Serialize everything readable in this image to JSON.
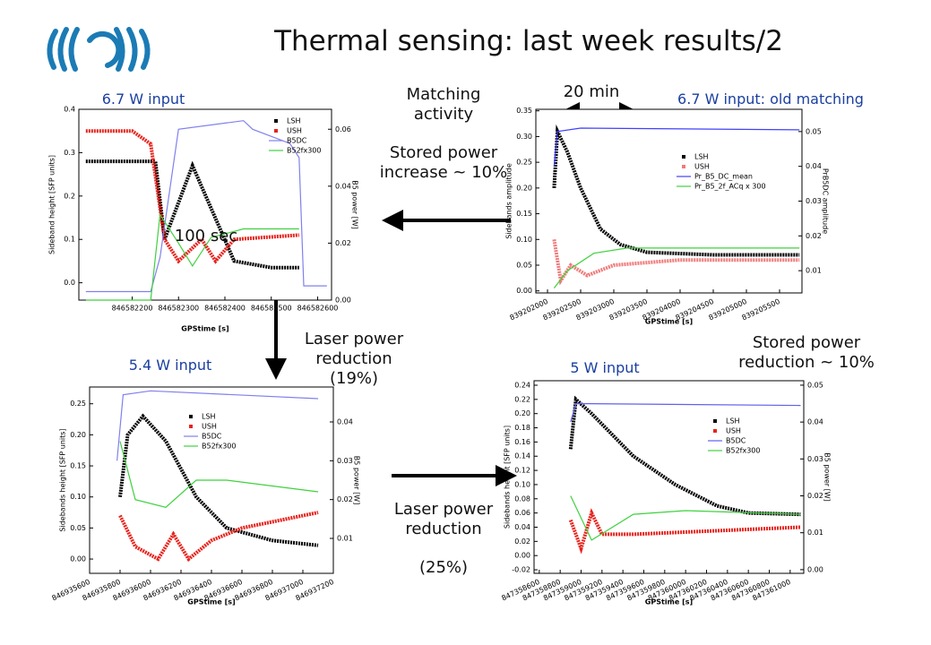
{
  "title": "Thermal sensing: last week results/2",
  "annotations": {
    "tl_input": "6.7 W input",
    "matching": "Matching activity",
    "stored_up": "Stored power increase ~ 10%",
    "twenty_min": "20 min",
    "tr_input": "6.7 W input: old matching",
    "hundred_sec": "100 sec",
    "laser_19": "Laser power reduction (19%)",
    "bl_input": "5.4 W input",
    "stored_down": "Stored power reduction ~ 10%",
    "br_input": "5 W input",
    "laser_25": "Laser power reduction",
    "laser_25_pct": "(25%)"
  },
  "chart_data": [
    {
      "type": "line",
      "xlabel": "GPStime [s]",
      "ylabel": "Sideband height [SFP units]",
      "y2label": "B5 power [W]",
      "xlim": [
        846582085,
        846582630
      ],
      "ylim": [
        -0.04,
        0.4
      ],
      "y2lim": [
        0,
        0.067
      ],
      "xticks": [
        846582200,
        846582300,
        846582400,
        846582500,
        846582600
      ],
      "yticks": [
        {
          "value": 0,
          "label": "0.0"
        },
        0.1,
        0.2,
        0.3,
        0.4
      ],
      "y2ticks": [
        {
          "value": 0,
          "label": "0.00"
        },
        0.02,
        0.04,
        0.06
      ],
      "series": [
        {
          "name": "LSH",
          "color": "#000000",
          "x": [
            846582100,
            846582250,
            846582270,
            846582330,
            846582420,
            846582500,
            846582560
          ],
          "values": [
            0.28,
            0.28,
            0.1,
            0.27,
            0.05,
            0.035,
            0.035
          ]
        },
        {
          "name": "USH",
          "color": "#e8231c",
          "x": [
            846582100,
            846582200,
            846582240,
            846582270,
            846582300,
            846582350,
            846582380,
            846582420,
            846582560
          ],
          "values": [
            0.35,
            0.35,
            0.32,
            0.1,
            0.05,
            0.1,
            0.05,
            0.1,
            0.11
          ]
        },
        {
          "name": "B5DC",
          "color": "#8080ee",
          "axis": "y2",
          "x": [
            846582100,
            846582240,
            846582260,
            846582300,
            846582440,
            846582460,
            846582540,
            846582560,
            846582570,
            846582620
          ],
          "values": [
            0.003,
            0.003,
            0.015,
            0.06,
            0.063,
            0.06,
            0.055,
            0.05,
            0.005,
            0.005
          ]
        },
        {
          "name": "B52fx300",
          "color": "#3fd13f",
          "axis": "y2",
          "x": [
            846582100,
            846582240,
            846582260,
            846582300,
            846582330,
            846582370,
            846582440,
            846582560
          ],
          "values": [
            0,
            0,
            0.03,
            0.02,
            0.012,
            0.022,
            0.025,
            0.025
          ]
        }
      ]
    },
    {
      "type": "line",
      "xlabel": "GPStime [s]",
      "ylabel": "Sidebands amplitude",
      "y2label": "PrB5DC amplitude",
      "xlim": [
        839201824,
        839205838
      ],
      "ylim": [
        -0.004,
        0.353
      ],
      "y2lim": [
        0.0036,
        0.0564
      ],
      "xticks": [
        839202000,
        839202500,
        839203000,
        839203500,
        839204000,
        839204500,
        839205000,
        839205500
      ],
      "yticks": [
        {
          "value": 0,
          "label": "0.00"
        },
        0.05,
        {
          "value": 0.1,
          "label": "0.10"
        },
        0.15,
        {
          "value": 0.2,
          "label": "0.20"
        },
        0.25,
        {
          "value": 0.3,
          "label": "0.30"
        },
        0.35
      ],
      "y2ticks": [
        0.01,
        {
          "value": 0.02,
          "label": "0.02"
        },
        0.03,
        0.04,
        0.05
      ],
      "series": [
        {
          "name": "LSH",
          "color": "#000000",
          "x": [
            839202100,
            839202150,
            839202300,
            839202500,
            839202800,
            839203100,
            839203500,
            839204500,
            839205800
          ],
          "values": [
            0.2,
            0.31,
            0.27,
            0.2,
            0.12,
            0.09,
            0.075,
            0.07,
            0.07
          ]
        },
        {
          "name": "USH",
          "color": "#f07a7a",
          "x": [
            839202100,
            839202200,
            839202350,
            839202600,
            839203000,
            839204000,
            839205800
          ],
          "values": [
            0.1,
            0.02,
            0.05,
            0.03,
            0.05,
            0.06,
            0.06
          ]
        },
        {
          "name": "Pr_B5_DC_mean",
          "color": "#4040ff",
          "axis": "y2",
          "x": [
            839202100,
            839202150,
            839202500,
            839205800
          ],
          "values": [
            0.04,
            0.05,
            0.051,
            0.0505
          ]
        },
        {
          "name": "Pr_B5_2f_ACq x 300",
          "color": "#3fd13f",
          "axis": "y2",
          "x": [
            839202100,
            839202300,
            839202700,
            839203200,
            839205800
          ],
          "values": [
            0.005,
            0.01,
            0.015,
            0.0165,
            0.0165
          ]
        }
      ]
    },
    {
      "type": "line",
      "xlabel": "GPStime [s]",
      "ylabel": "Sidebands height [SFP units]",
      "y2label": "B5 power [W]",
      "xlim": [
        846935600,
        846937200
      ],
      "ylim": [
        -0.023,
        0.277
      ],
      "y2lim": [
        0.001,
        0.049
      ],
      "xticks": [
        846935600,
        846935800,
        846936000,
        846936200,
        846936400,
        846936600,
        846936800,
        846937000,
        846937200
      ],
      "yticks": [
        {
          "value": 0,
          "label": "0.00"
        },
        0.05,
        {
          "value": 0.1,
          "label": "0.10"
        },
        0.15,
        {
          "value": 0.2,
          "label": "0.20"
        },
        0.25
      ],
      "y2ticks": [
        0.01,
        {
          "value": 0.02,
          "label": "0.02"
        },
        0.03,
        0.04
      ],
      "series": [
        {
          "name": "LSH",
          "color": "#000000",
          "x": [
            846935800,
            846935850,
            846935950,
            846936100,
            846936300,
            846936500,
            846936800,
            846937100
          ],
          "values": [
            0.1,
            0.2,
            0.23,
            0.19,
            0.1,
            0.05,
            0.03,
            0.022
          ]
        },
        {
          "name": "USH",
          "color": "#e8231c",
          "x": [
            846935800,
            846935900,
            846936050,
            846936150,
            846936250,
            846936400,
            846936600,
            846936800,
            846937100
          ],
          "values": [
            0.07,
            0.02,
            0,
            0.04,
            0,
            0.03,
            0.05,
            0.06,
            0.075
          ]
        },
        {
          "name": "B5DC",
          "color": "#8080ee",
          "axis": "y2",
          "x": [
            846935780,
            846935820,
            846936000,
            846937100
          ],
          "values": [
            0.03,
            0.047,
            0.048,
            0.046
          ]
        },
        {
          "name": "B52fx300",
          "color": "#3fd13f",
          "axis": "y2",
          "x": [
            846935800,
            846935900,
            846936100,
            846936300,
            846936500,
            846937100
          ],
          "values": [
            0.035,
            0.02,
            0.018,
            0.025,
            0.025,
            0.022
          ]
        }
      ]
    },
    {
      "type": "line",
      "xlabel": "GPStime [s]",
      "ylabel": "Sidebands height [SFP units]",
      "y2label": "B5 power [W]",
      "xlim": [
        847358550,
        847361130
      ],
      "ylim": [
        -0.025,
        0.2463
      ],
      "y2lim": [
        -0.001,
        0.0512
      ],
      "xticks": [
        847358600,
        847358800,
        847359000,
        847359200,
        847359400,
        847359600,
        847359800,
        847360000,
        847360200,
        847360400,
        847360600,
        847360800,
        847361000
      ],
      "yticks": [
        -0.02,
        {
          "value": 0,
          "label": "0.00"
        },
        0.02,
        0.04,
        0.06,
        0.08,
        {
          "value": 0.1,
          "label": "0.10"
        },
        0.12,
        0.14,
        0.16,
        0.18,
        {
          "value": 0.2,
          "label": "0.20"
        },
        0.22,
        0.24
      ],
      "y2ticks": [
        {
          "value": 0,
          "label": "0.00"
        },
        0.01,
        {
          "value": 0.02,
          "label": "0.02"
        },
        0.03,
        0.04,
        0.05
      ],
      "series": [
        {
          "name": "LSH",
          "color": "#000000",
          "x": [
            847358900,
            847358950,
            847359100,
            847359500,
            847359900,
            847360300,
            847360600,
            847361100
          ],
          "values": [
            0.15,
            0.22,
            0.2,
            0.14,
            0.1,
            0.07,
            0.06,
            0.058
          ]
        },
        {
          "name": "USH",
          "color": "#e8231c",
          "x": [
            847358900,
            847359000,
            847359100,
            847359200,
            847359500,
            847361100
          ],
          "values": [
            0.05,
            0.01,
            0.06,
            0.03,
            0.03,
            0.04
          ]
        },
        {
          "name": "B5DC",
          "color": "#6060ee",
          "axis": "y2",
          "x": [
            847358900,
            847358950,
            847361100
          ],
          "values": [
            0.04,
            0.045,
            0.0445
          ]
        },
        {
          "name": "B52fx300",
          "color": "#3fd13f",
          "axis": "y2",
          "x": [
            847358900,
            847359100,
            847359500,
            847360000,
            847361100
          ],
          "values": [
            0.02,
            0.008,
            0.015,
            0.016,
            0.015
          ]
        }
      ]
    }
  ]
}
